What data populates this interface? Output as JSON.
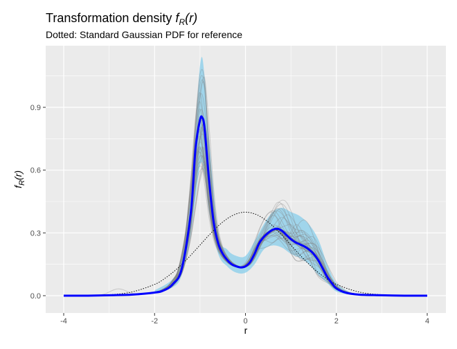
{
  "chart_data": {
    "type": "line",
    "title": {
      "main": "Transformation density ",
      "f": "f",
      "sub": "R",
      "args": "(r)"
    },
    "subtitle": "Dotted: Standard Gaussian PDF for reference",
    "xlabel": "r",
    "ylabel": {
      "f": "f",
      "sub": "R",
      "args": "(r)"
    },
    "xlim": [
      -4,
      4
    ],
    "ylim": [
      0,
      1.15
    ],
    "x_ticks": [
      -4,
      -2,
      0,
      2,
      4
    ],
    "x_tick_labels": [
      "-4",
      "-2",
      "0",
      "2",
      "4"
    ],
    "y_ticks": [
      0.0,
      0.3,
      0.6,
      0.9
    ],
    "y_tick_labels": [
      "0.0",
      "0.3",
      "0.6",
      "0.9"
    ],
    "grid": true,
    "colors": {
      "panel": "#ebebeb",
      "grid": "#ffffff",
      "mean_line": "#0000ff",
      "band": "#87ceeb",
      "samples": "#808080",
      "reference": "#000000"
    },
    "series": [
      {
        "role": "mean",
        "x": [
          -4.0,
          -3.5,
          -3.0,
          -2.5,
          -2.0,
          -1.8,
          -1.6,
          -1.4,
          -1.2,
          -1.1,
          -1.0,
          -0.95,
          -0.9,
          -0.8,
          -0.7,
          -0.6,
          -0.5,
          -0.4,
          -0.3,
          -0.2,
          -0.1,
          0.0,
          0.1,
          0.2,
          0.3,
          0.4,
          0.5,
          0.6,
          0.7,
          0.8,
          0.9,
          1.0,
          1.1,
          1.2,
          1.3,
          1.4,
          1.5,
          1.6,
          1.7,
          1.8,
          1.9,
          2.0,
          2.2,
          2.5,
          3.0,
          3.5,
          4.0
        ],
        "y": [
          0.0,
          0.0,
          0.002,
          0.005,
          0.015,
          0.025,
          0.055,
          0.13,
          0.4,
          0.7,
          0.84,
          0.85,
          0.8,
          0.55,
          0.35,
          0.25,
          0.2,
          0.17,
          0.15,
          0.14,
          0.135,
          0.14,
          0.16,
          0.2,
          0.25,
          0.28,
          0.3,
          0.315,
          0.32,
          0.31,
          0.29,
          0.27,
          0.255,
          0.245,
          0.235,
          0.22,
          0.2,
          0.17,
          0.13,
          0.09,
          0.06,
          0.035,
          0.015,
          0.005,
          0.002,
          0.0,
          0.0
        ]
      },
      {
        "role": "band",
        "x": [
          -2.0,
          -1.6,
          -1.4,
          -1.2,
          -1.0,
          -0.9,
          -0.8,
          -0.6,
          -0.4,
          -0.2,
          0.0,
          0.2,
          0.4,
          0.6,
          0.8,
          1.0,
          1.2,
          1.4,
          1.6,
          1.8,
          2.0,
          2.3
        ],
        "lower": [
          0.01,
          0.04,
          0.1,
          0.3,
          0.62,
          0.58,
          0.4,
          0.2,
          0.14,
          0.11,
          0.11,
          0.15,
          0.22,
          0.24,
          0.23,
          0.2,
          0.18,
          0.15,
          0.1,
          0.06,
          0.02,
          0.005
        ],
        "upper": [
          0.025,
          0.08,
          0.18,
          0.5,
          1.1,
          1.05,
          0.75,
          0.3,
          0.22,
          0.19,
          0.19,
          0.26,
          0.34,
          0.4,
          0.42,
          0.4,
          0.38,
          0.34,
          0.27,
          0.15,
          0.06,
          0.015
        ]
      },
      {
        "role": "reference",
        "x": [
          -4.0,
          -3.5,
          -3.0,
          -2.5,
          -2.0,
          -1.75,
          -1.5,
          -1.25,
          -1.0,
          -0.75,
          -0.5,
          -0.25,
          0.0,
          0.25,
          0.5,
          0.75,
          1.0,
          1.25,
          1.5,
          1.75,
          2.0,
          2.5,
          3.0,
          3.5,
          4.0
        ],
        "y": [
          0.0001,
          0.0009,
          0.0044,
          0.0175,
          0.054,
          0.0863,
          0.1295,
          0.1826,
          0.242,
          0.3011,
          0.3521,
          0.3867,
          0.3989,
          0.3867,
          0.3521,
          0.3011,
          0.242,
          0.1826,
          0.1295,
          0.0863,
          0.054,
          0.0175,
          0.0044,
          0.0009,
          0.0001
        ]
      }
    ]
  }
}
